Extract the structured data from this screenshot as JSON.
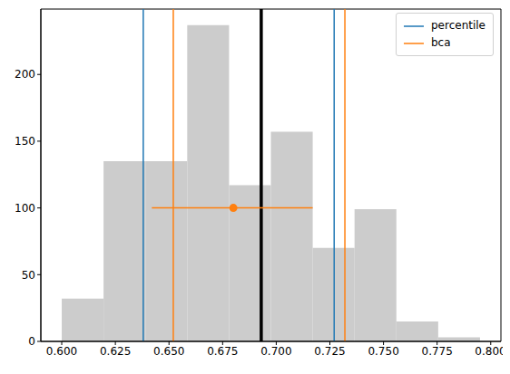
{
  "chart_data": {
    "type": "histogram",
    "bins": [
      0.6,
      0.6195,
      0.639,
      0.6585,
      0.678,
      0.6975,
      0.717,
      0.7365,
      0.756,
      0.7755,
      0.795
    ],
    "counts": [
      32,
      135,
      135,
      237,
      117,
      157,
      70,
      99,
      15,
      3
    ],
    "color": "#cccccc",
    "xlim": [
      0.59025,
      0.80475
    ],
    "xticks": [
      {
        "value": 0.6,
        "label": "0.600"
      },
      {
        "value": 0.625,
        "label": "0.625"
      },
      {
        "value": 0.65,
        "label": "0.650"
      },
      {
        "value": 0.675,
        "label": "0.675"
      },
      {
        "value": 0.7,
        "label": "0.700"
      },
      {
        "value": 0.725,
        "label": "0.725"
      },
      {
        "value": 0.75,
        "label": "0.750"
      },
      {
        "value": 0.775,
        "label": "0.775"
      },
      {
        "value": 0.8,
        "label": "0.800"
      }
    ],
    "ylim": [
      0,
      249
    ],
    "yticks": [
      0,
      50,
      100,
      150,
      200
    ],
    "legend": "upper right",
    "vlines": [
      {
        "name": "percentile",
        "color": "#1f77b4",
        "values": [
          0.638,
          0.727
        ]
      },
      {
        "name": "bca",
        "color": "#ff7f0e",
        "values": [
          0.652,
          0.732
        ]
      },
      {
        "color": "#000000",
        "values": [
          0.693
        ]
      }
    ],
    "point": {
      "x": 0.68,
      "y": 100,
      "xerr": [
        0.642,
        0.717
      ],
      "color": "#ff7f0e"
    }
  }
}
